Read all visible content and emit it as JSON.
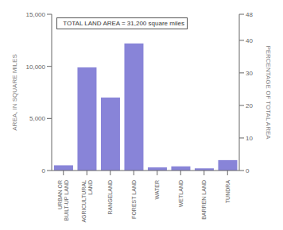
{
  "chart_data": {
    "type": "bar",
    "categories": [
      "URBAN OR\nBUILT-UP LAND",
      "AGRICULTURAL\nLAND",
      "RANGELAND",
      "FOREST LAND",
      "WATER",
      "WETLAND",
      "BARREN LAND",
      "TUNDRA"
    ],
    "values": [
      500,
      9900,
      7000,
      12200,
      300,
      400,
      200,
      1000
    ],
    "ylim": [
      0,
      15000
    ],
    "yticks": [
      0,
      {
        "value": 5000,
        "label": "5,000"
      },
      {
        "value": 10000,
        "label": "10,000"
      },
      {
        "value": 15000,
        "label": "15,000"
      }
    ],
    "ylabel": "AREA, IN SQUARE MILES",
    "y2lim": [
      0,
      48
    ],
    "y2ticks": [
      0,
      10,
      20,
      30,
      40,
      48
    ],
    "y2label": "PERCENTAGE OF TOTAL AREA",
    "annotation": "  TOTAL LAND AREA = 31,200 square miles",
    "grid": false
  }
}
